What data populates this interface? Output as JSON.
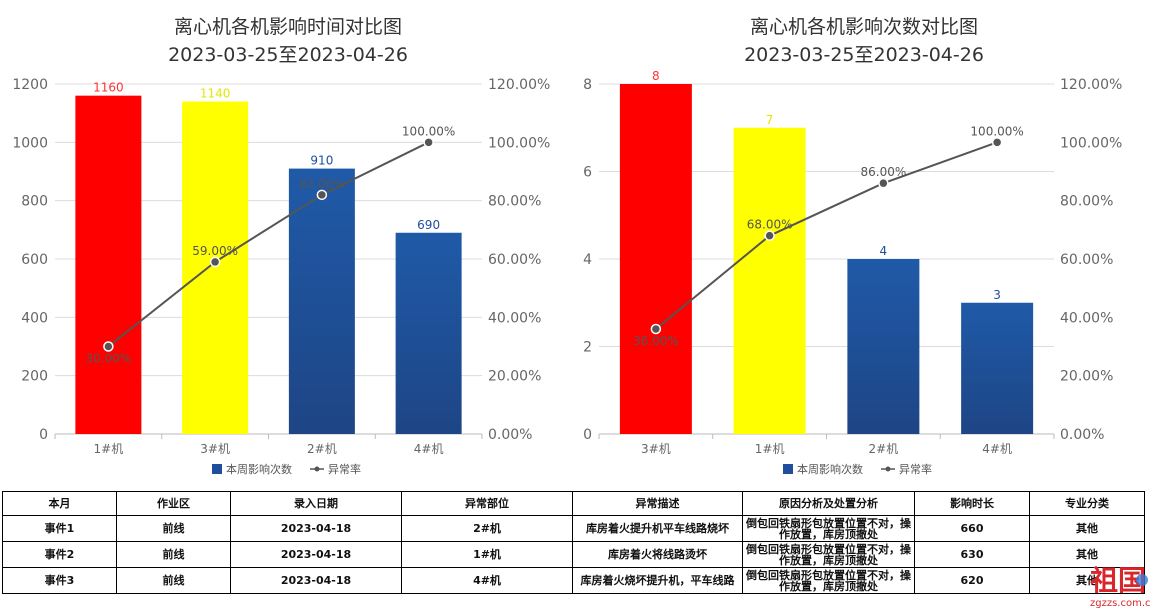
{
  "charts": [
    {
      "title_line1": "离心机各机影响时间对比图",
      "title_line2": "2023-03-25至2023-04-26",
      "y_ticks": [
        "1200",
        "1000",
        "800",
        "600",
        "400",
        "200",
        "0"
      ],
      "y2_ticks": [
        "120.00%",
        "100.00%",
        "80.00%",
        "60.00%",
        "40.00%",
        "20.00%",
        "0.00%"
      ]
    },
    {
      "title_line1": "离心机各机影响次数对比图",
      "title_line2": "2023-03-25至2023-04-26",
      "y_ticks": [
        "8",
        "6",
        "4",
        "2",
        "0"
      ],
      "y2_ticks": [
        "120.00%",
        "100.00%",
        "80.00%",
        "60.00%",
        "40.00%",
        "20.00%",
        "0.00%"
      ]
    }
  ],
  "chart_data": [
    {
      "type": "bar",
      "title": "离心机各机影响时间对比图 2023-03-25至2023-04-26",
      "categories": [
        "1#机",
        "3#机",
        "2#机",
        "4#机"
      ],
      "series": [
        {
          "name": "本周影响次数",
          "type": "bar",
          "values": [
            1160,
            1140,
            910,
            690
          ],
          "data_labels": [
            "1160",
            "1140",
            "910",
            "690"
          ],
          "colors": [
            "#ff0000",
            "#ffff00",
            "#1f4e9c",
            "#1f4e9c"
          ],
          "label_colors": [
            "#ff3333",
            "#e6e600",
            "#1f4e9c",
            "#1f4e9c"
          ]
        },
        {
          "name": "异常率",
          "type": "line",
          "axis": "right",
          "values": [
            30.0,
            59.0,
            82.0,
            100.0
          ],
          "data_labels": [
            "30.00%",
            "59.00%",
            "82.00%",
            "100.00%"
          ]
        }
      ],
      "ylim": [
        0,
        1200
      ],
      "y2lim": [
        0,
        120
      ],
      "legend": "bottom",
      "grid": true
    },
    {
      "type": "bar",
      "title": "离心机各机影响次数对比图 2023-03-25至2023-04-26",
      "categories": [
        "3#机",
        "1#机",
        "2#机",
        "4#机"
      ],
      "series": [
        {
          "name": "本周影响次数",
          "type": "bar",
          "values": [
            8,
            7,
            4,
            3
          ],
          "data_labels": [
            "8",
            "7",
            "4",
            "3"
          ],
          "colors": [
            "#ff0000",
            "#ffff00",
            "#1f4e9c",
            "#1f4e9c"
          ],
          "label_colors": [
            "#ff3333",
            "#e6e600",
            "#1f4e9c",
            "#1f4e9c"
          ]
        },
        {
          "name": "异常率",
          "type": "line",
          "axis": "right",
          "values": [
            36.0,
            68.0,
            86.0,
            100.0
          ],
          "data_labels": [
            "36.00%",
            "68.00%",
            "86.00%",
            "100.00%"
          ]
        }
      ],
      "ylim": [
        0,
        8
      ],
      "y2lim": [
        0,
        120
      ],
      "legend": "bottom",
      "grid": true
    }
  ],
  "table": {
    "headers": [
      "本月",
      "作业区",
      "录入日期",
      "异常部位",
      "异常描述",
      "原因分析及处置分析",
      "影响时长",
      "专业分类"
    ],
    "rows": [
      [
        "事件1",
        "前线",
        "2023-04-18",
        "2#机",
        "库房着火提升机平车线路烧坏",
        "倒包回铁扇形包放置位置不对，操作放置，库房顶撤处",
        "660",
        "其他"
      ],
      [
        "事件2",
        "前线",
        "2023-04-18",
        "1#机",
        "库房着火将线路烫坏",
        "倒包回铁扇形包放置位置不对，操作放置，库房顶撤处",
        "630",
        "其他"
      ],
      [
        "事件3",
        "前线",
        "2023-04-18",
        "4#机",
        "库房着火烧坏提升机，平车线路",
        "倒包回铁扇形包放置位置不对，操作放置，库房顶撤处",
        "620",
        "其他"
      ]
    ]
  },
  "watermark": {
    "big": "祖国",
    "small": "zgzzs.com.cn"
  }
}
